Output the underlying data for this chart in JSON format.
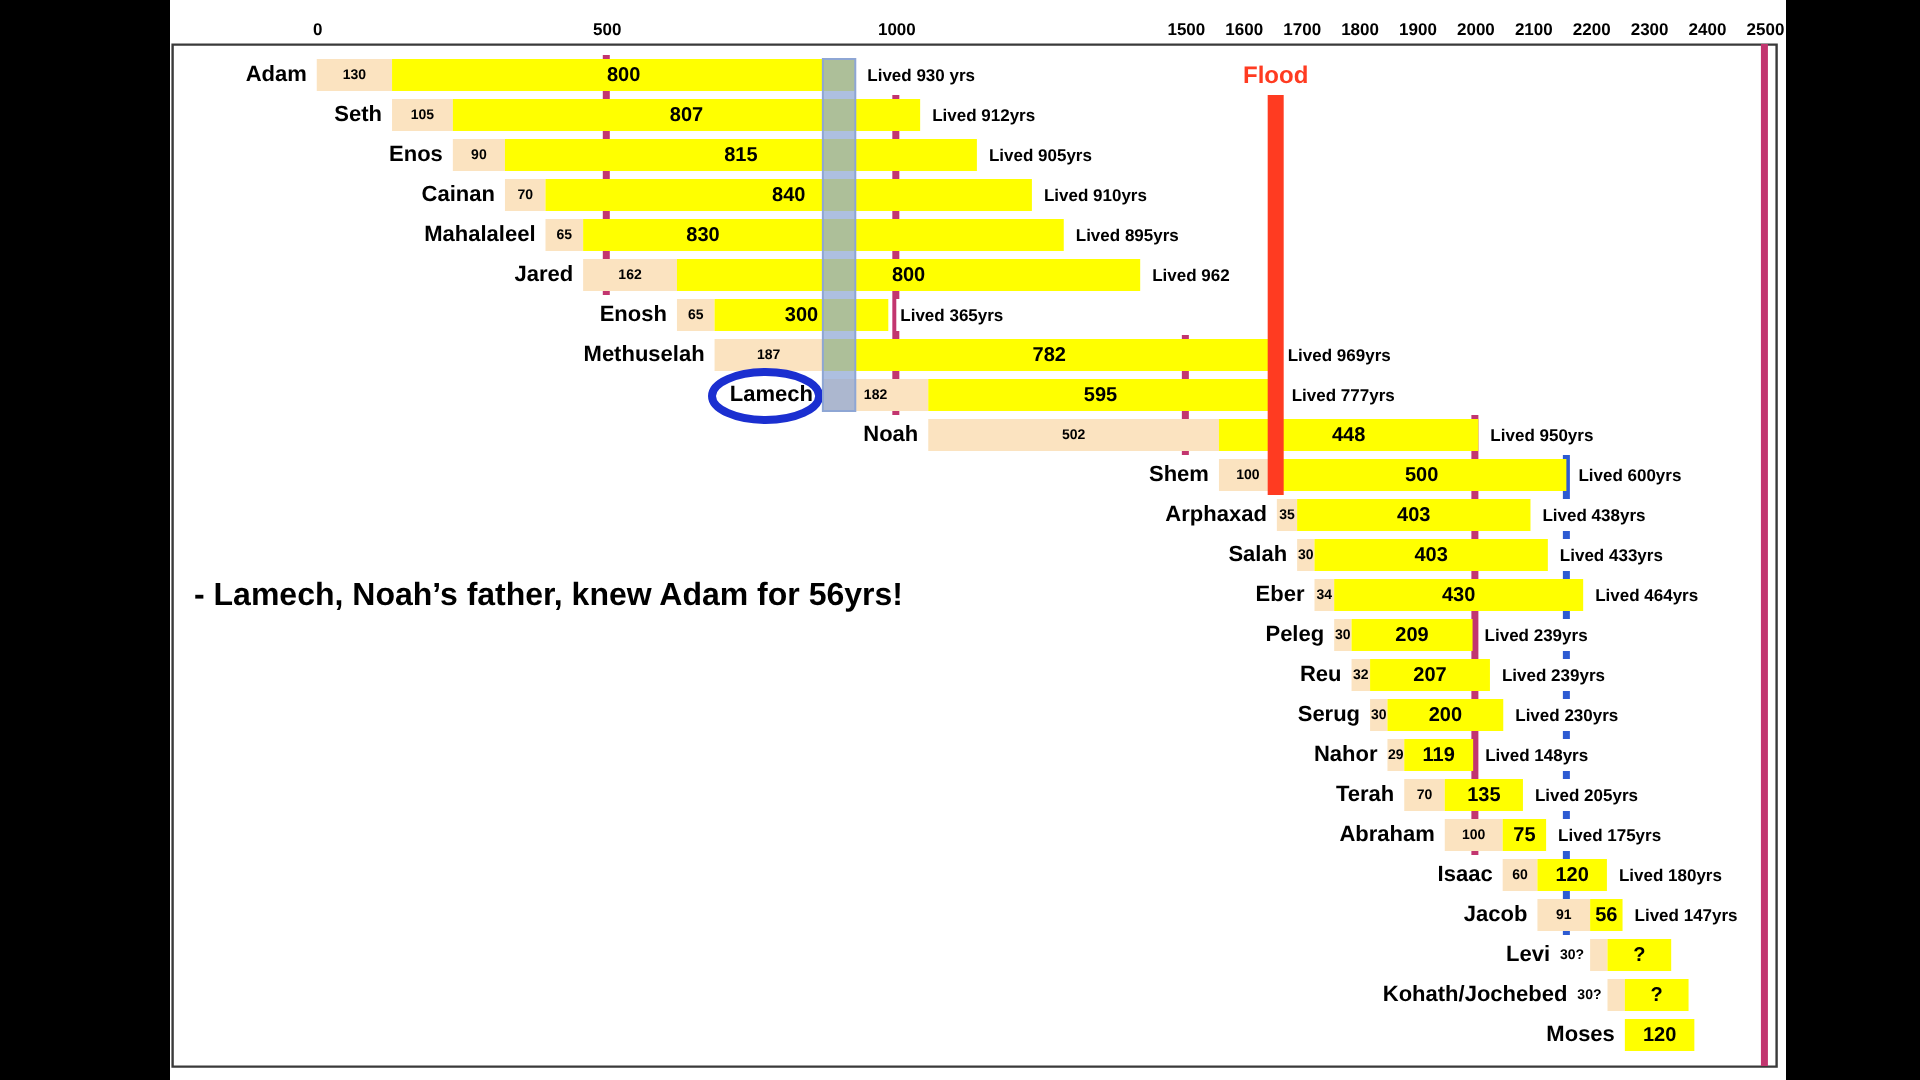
{
  "chart_data": {
    "type": "bar",
    "orientation": "horizontal",
    "categories": [
      "Adam",
      "Seth",
      "Enos",
      "Cainan",
      "Mahalaleel",
      "Jared",
      "Enosh",
      "Methuselah",
      "Lamech",
      "Noah",
      "Shem",
      "Arphaxad",
      "Salah",
      "Eber",
      "Peleg",
      "Reu",
      "Serug",
      "Nahor",
      "Terah",
      "Abraham",
      "Isaac",
      "Jacob",
      "Levi",
      "Kohath/Jochebed",
      "Moses"
    ],
    "series": [
      {
        "color": "#fbe3c0",
        "base": [
          0,
          130,
          235,
          325,
          395,
          460,
          622,
          687,
          874,
          1056,
          1558,
          1658,
          1693,
          1723,
          1757,
          1787,
          1819,
          1849,
          1878,
          1948,
          2048,
          2108,
          2199,
          2229,
          null
        ],
        "values": [
          130,
          105,
          90,
          70,
          65,
          162,
          65,
          187,
          182,
          502,
          100,
          35,
          30,
          34,
          30,
          32,
          30,
          29,
          70,
          100,
          60,
          91,
          30,
          30,
          null
        ],
        "value_labels": [
          "130",
          "105",
          "90",
          "70",
          "65",
          "162",
          "65",
          "187",
          "182",
          "502",
          "100",
          "35",
          "30",
          "34",
          "30",
          "32",
          "30",
          "29",
          "70",
          "100",
          "60",
          "91",
          "30?",
          "30?",
          null
        ]
      },
      {
        "color": "#ffff00",
        "base": [
          130,
          235,
          325,
          395,
          460,
          622,
          687,
          874,
          1056,
          1558,
          1658,
          1693,
          1723,
          1757,
          1787,
          1819,
          1849,
          1878,
          1948,
          2048,
          2108,
          2199,
          2229,
          2259,
          2259
        ],
        "values": [
          800,
          807,
          815,
          840,
          830,
          800,
          300,
          782,
          595,
          448,
          500,
          403,
          403,
          430,
          209,
          207,
          200,
          119,
          135,
          75,
          120,
          56,
          110,
          110,
          120
        ],
        "value_labels": [
          "800",
          "807",
          "815",
          "840",
          "830",
          "800",
          "300",
          "782",
          "595",
          "448",
          "500",
          "403",
          "403",
          "430",
          "209",
          "207",
          "200",
          "119",
          "135",
          "75",
          "120",
          "56",
          "?",
          "?",
          "120"
        ]
      }
    ],
    "totals": [
      "Lived 930 yrs",
      "Lived 912yrs",
      "Lived 905yrs",
      "Lived 910yrs",
      "Lived 895yrs",
      "Lived 962",
      "Lived 365yrs",
      "Lived 969yrs",
      "Lived 777yrs",
      "Lived 950yrs",
      "Lived 600yrs",
      "Lived 438yrs",
      "Lived 433yrs",
      "Lived 464yrs",
      "Lived 239yrs",
      "Lived 239yrs",
      "Lived 230yrs",
      "Lived 148yrs",
      "Lived 205yrs",
      "Lived 175yrs",
      "Lived 180yrs",
      "Lived 147yrs",
      null,
      null,
      null
    ],
    "xlim": [
      -250,
      2520
    ],
    "xticks": [
      0,
      500,
      1000,
      1500,
      1600,
      1700,
      1800,
      1900,
      2000,
      2100,
      2200,
      2300,
      2400,
      2500
    ],
    "ref_lines": [
      {
        "axis": "x",
        "value": 500,
        "color": "#c2356f"
      },
      {
        "axis": "x",
        "value": 1000,
        "color": "#c2356f"
      },
      {
        "axis": "x",
        "value": 1500,
        "color": "#c2356f"
      },
      {
        "axis": "x",
        "value": 2000,
        "color": "#c2356f"
      },
      {
        "axis": "x",
        "value": 2500,
        "color": "#c2356f"
      },
      {
        "axis": "x",
        "value": 1656,
        "label": "Flood",
        "color": "#ff3b21"
      },
      {
        "axis": "x",
        "value": 2158,
        "color": "#2d5bd2"
      }
    ],
    "bands": [
      {
        "axis": "x",
        "from": 874,
        "to": 930,
        "color": "#8ea6d4"
      }
    ],
    "annotations": [
      "- Lamech, Noah’s father, knew Adam for 56yrs!"
    ]
  }
}
